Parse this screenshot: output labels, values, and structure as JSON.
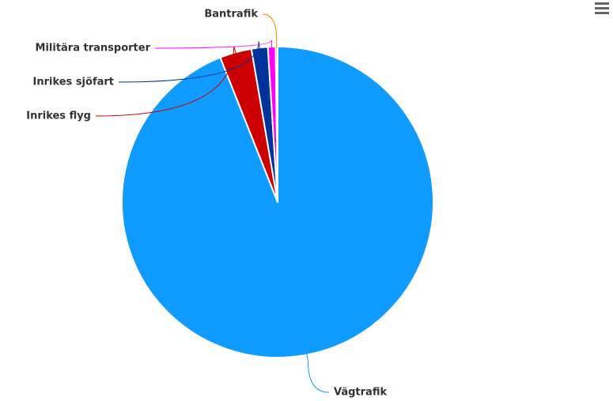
{
  "chart_data": {
    "type": "pie",
    "categories": [
      "Vägtrafik",
      "Inrikes flyg",
      "Inrikes sjöfart",
      "Militära transporter",
      "Bantrafik"
    ],
    "values": [
      94,
      3.3,
      1.7,
      0.8,
      0.2
    ],
    "colors": [
      "#0f9bff",
      "#cc0000",
      "#003399",
      "#ff00ff",
      "#ff8000"
    ]
  }
}
